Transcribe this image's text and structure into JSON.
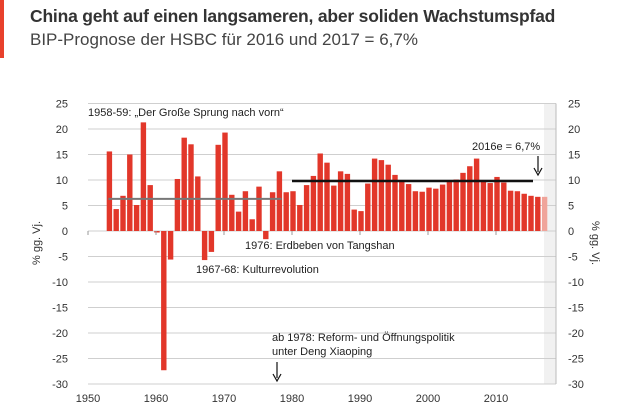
{
  "header": {
    "title": "China geht auf einen langsameren, aber soliden Wachstumspfad",
    "subtitle": "BIP-Prognose der HSBC für 2016 und 2017 = 6,7%"
  },
  "colors": {
    "accent": "#e8412c",
    "bar": "#e2372a",
    "forecast_bar": "#f0a49a",
    "avg_pre": "#777777",
    "avg_post": "#111111"
  },
  "chart_data": {
    "type": "bar",
    "title": "",
    "ylabel": "% gg. Vj.",
    "ylabel_right": "% gg. Vj.",
    "xlim": [
      1950,
      2017
    ],
    "ylim": [
      -30,
      25
    ],
    "xticks": [
      1950,
      1960,
      1970,
      1980,
      1990,
      2000,
      2010
    ],
    "yticks": [
      25,
      20,
      15,
      10,
      5,
      0,
      -5,
      -10,
      -15,
      -20,
      -25,
      -30
    ],
    "grid": true,
    "years": [
      1953,
      1954,
      1955,
      1956,
      1957,
      1958,
      1959,
      1960,
      1961,
      1962,
      1963,
      1964,
      1965,
      1966,
      1967,
      1968,
      1969,
      1970,
      1971,
      1972,
      1973,
      1974,
      1975,
      1976,
      1977,
      1978,
      1979,
      1980,
      1981,
      1982,
      1983,
      1984,
      1985,
      1986,
      1987,
      1988,
      1989,
      1990,
      1991,
      1992,
      1993,
      1994,
      1995,
      1996,
      1997,
      1998,
      1999,
      2000,
      2001,
      2002,
      2003,
      2004,
      2005,
      2006,
      2007,
      2008,
      2009,
      2010,
      2011,
      2012,
      2013,
      2014,
      2015,
      2016,
      2017
    ],
    "values": [
      15.6,
      4.3,
      6.9,
      15.0,
      5.1,
      21.3,
      9.0,
      -0.3,
      -27.3,
      -5.6,
      10.2,
      18.3,
      17.0,
      10.7,
      -5.7,
      -4.1,
      16.9,
      19.3,
      7.1,
      3.8,
      7.8,
      2.3,
      8.7,
      -1.6,
      7.6,
      11.7,
      7.6,
      7.8,
      5.1,
      9.0,
      10.8,
      15.2,
      13.4,
      8.9,
      11.7,
      11.2,
      4.2,
      3.9,
      9.3,
      14.2,
      13.9,
      13.0,
      11.0,
      9.9,
      9.2,
      7.8,
      7.7,
      8.5,
      8.3,
      9.1,
      10.0,
      10.1,
      11.4,
      12.7,
      14.2,
      9.7,
      9.4,
      10.6,
      9.5,
      7.9,
      7.8,
      7.3,
      6.9,
      6.7,
      6.7
    ],
    "forecast_years": [
      2017
    ],
    "averages": [
      {
        "from": 1953,
        "to": 1978,
        "value": 6.3
      },
      {
        "from": 1980,
        "to": 2015,
        "value": 9.8
      }
    ],
    "annotations": [
      {
        "text": "1958-59: „Der Große Sprung nach vorn“"
      },
      {
        "text": "2016e = 6,7%"
      },
      {
        "text": "1976: Erdbeben von Tangshan"
      },
      {
        "text": "1967-68: Kulturrevolution"
      },
      {
        "text": "ab 1978: Reform- und Öffnungspolitik"
      },
      {
        "text": "unter Deng Xiaoping"
      }
    ]
  }
}
